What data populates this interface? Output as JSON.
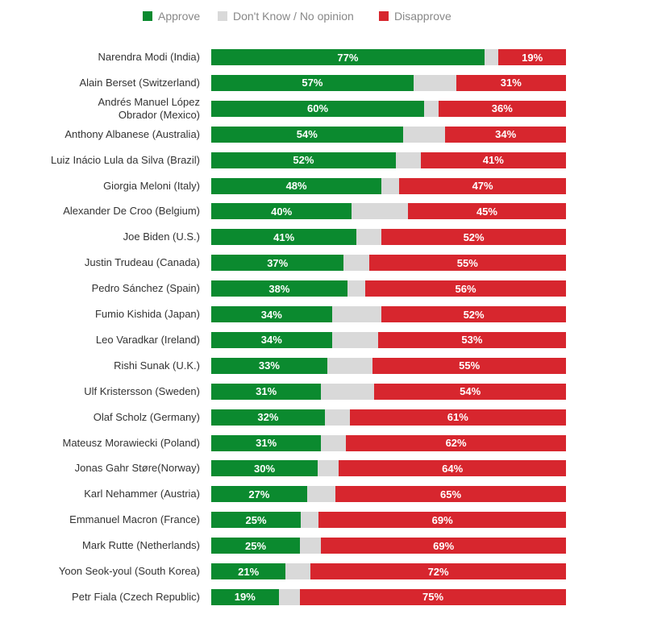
{
  "chart_data": {
    "type": "bar",
    "orientation": "horizontal",
    "stacked": true,
    "legend_position": "top",
    "grid": false,
    "categories": [
      "Narendra Modi (India)",
      "Alain Berset (Switzerland)",
      "Andrés Manuel López Obrador (Mexico)",
      "Anthony Albanese (Australia)",
      "Luiz Inácio Lula da Silva (Brazil)",
      "Giorgia Meloni (Italy)",
      "Alexander De Croo (Belgium)",
      "Joe Biden (U.S.)",
      "Justin Trudeau (Canada)",
      "Pedro Sánchez (Spain)",
      "Fumio Kishida (Japan)",
      "Leo Varadkar (Ireland)",
      "Rishi Sunak (U.K.)",
      "Ulf Kristersson (Sweden)",
      "Olaf Scholz (Germany)",
      "Mateusz Morawiecki (Poland)",
      "Jonas Gahr Støre(Norway)",
      "Karl Nehammer (Austria)",
      "Emmanuel Macron (France)",
      "Mark Rutte (Netherlands)",
      "Yoon Seok-youl (South Korea)",
      "Petr Fiala (Czech Republic)"
    ],
    "series": [
      {
        "name": "Approve",
        "color": "#0b8a2f",
        "values": [
          77,
          57,
          60,
          54,
          52,
          48,
          40,
          41,
          37,
          38,
          34,
          34,
          33,
          31,
          32,
          31,
          30,
          27,
          25,
          25,
          21,
          19
        ]
      },
      {
        "name": "Don't Know / No opinion",
        "color": "#d9d9d9",
        "values": [
          4,
          12,
          4,
          12,
          7,
          5,
          16,
          7,
          7,
          5,
          14,
          13,
          13,
          15,
          7,
          7,
          6,
          8,
          5,
          6,
          7,
          6
        ]
      },
      {
        "name": "Disapprove",
        "color": "#d7262e",
        "values": [
          19,
          31,
          36,
          34,
          41,
          47,
          45,
          52,
          55,
          56,
          52,
          53,
          55,
          54,
          61,
          62,
          64,
          65,
          69,
          69,
          72,
          75
        ]
      }
    ],
    "value_labels": {
      "Approve": [
        "77%",
        "57%",
        "60%",
        "54%",
        "52%",
        "48%",
        "40%",
        "41%",
        "37%",
        "38%",
        "34%",
        "34%",
        "33%",
        "31%",
        "32%",
        "31%",
        "30%",
        "27%",
        "25%",
        "25%",
        "21%",
        "19%"
      ],
      "Disapprove": [
        "19%",
        "31%",
        "36%",
        "34%",
        "41%",
        "47%",
        "45%",
        "52%",
        "55%",
        "56%",
        "52%",
        "53%",
        "55%",
        "54%",
        "61%",
        "62%",
        "64%",
        "65%",
        "69%",
        "69%",
        "72%",
        "75%"
      ]
    },
    "xlim": [
      0,
      100
    ]
  }
}
